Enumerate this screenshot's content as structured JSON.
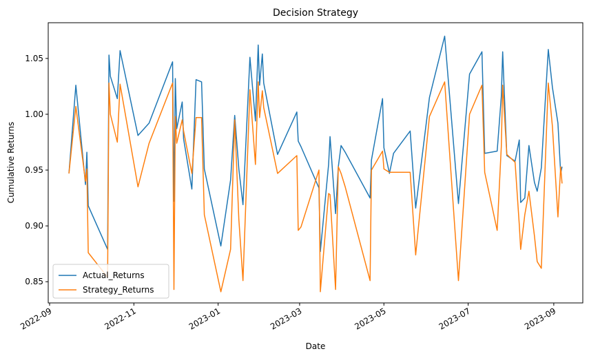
{
  "chart_data": {
    "type": "line",
    "title": "Decision Strategy",
    "xlabel": "Date",
    "ylabel": "Cumulative Returns",
    "xlim": [
      "2022-08-31",
      "2023-09-22"
    ],
    "ylim": [
      0.831,
      1.082
    ],
    "x_ticks": [
      "2022-09",
      "2022-11",
      "2023-01",
      "2023-03",
      "2023-05",
      "2023-07",
      "2023-09"
    ],
    "y_ticks": [
      "0.85",
      "0.90",
      "0.95",
      "1.00",
      "1.05"
    ],
    "legend_position": "lower-left",
    "grid": false,
    "x": [
      "2022-09-15",
      "2022-09-20",
      "2022-09-27",
      "2022-09-28",
      "2022-09-29",
      "2022-10-13",
      "2022-10-14",
      "2022-10-15",
      "2022-10-20",
      "2022-10-22",
      "2022-11-04",
      "2022-11-12",
      "2022-11-29",
      "2022-11-30",
      "2022-12-01",
      "2022-12-02",
      "2022-12-06",
      "2022-12-07",
      "2022-12-13",
      "2022-12-16",
      "2022-12-20",
      "2022-12-22",
      "2023-01-03",
      "2023-01-10",
      "2023-01-13",
      "2023-01-16",
      "2023-01-19",
      "2023-01-24",
      "2023-01-28",
      "2023-01-30",
      "2023-01-31",
      "2023-02-02",
      "2023-02-03",
      "2023-02-13",
      "2023-02-27",
      "2023-02-28",
      "2023-03-02",
      "2023-03-15",
      "2023-03-16",
      "2023-03-22",
      "2023-03-23",
      "2023-03-27",
      "2023-03-29",
      "2023-03-31",
      "2023-04-03",
      "2023-04-21",
      "2023-04-22",
      "2023-04-30",
      "2023-05-01",
      "2023-05-05",
      "2023-05-08",
      "2023-05-20",
      "2023-05-24",
      "2023-06-03",
      "2023-06-14",
      "2023-06-24",
      "2023-07-02",
      "2023-07-11",
      "2023-07-13",
      "2023-07-22",
      "2023-07-25",
      "2023-07-26",
      "2023-07-29",
      "2023-08-04",
      "2023-08-07",
      "2023-08-08",
      "2023-08-11",
      "2023-08-14",
      "2023-08-18",
      "2023-08-20",
      "2023-08-23",
      "2023-08-28",
      "2023-08-31",
      "2023-09-04",
      "2023-09-06",
      "2023-09-07"
    ],
    "series": [
      {
        "name": "Actual_Returns",
        "color": "#1f77b4",
        "values": [
          0.947,
          1.026,
          0.937,
          0.966,
          0.918,
          0.879,
          1.053,
          1.034,
          1.014,
          1.057,
          0.981,
          0.992,
          1.047,
          0.922,
          1.032,
          0.987,
          1.011,
          0.978,
          0.933,
          1.031,
          1.029,
          0.951,
          0.882,
          0.941,
          0.999,
          0.951,
          0.919,
          1.051,
          0.994,
          1.062,
          1.026,
          1.054,
          1.028,
          0.964,
          1.002,
          0.976,
          0.971,
          0.934,
          0.877,
          0.955,
          0.98,
          0.911,
          0.953,
          0.972,
          0.966,
          0.925,
          0.959,
          1.014,
          0.97,
          0.947,
          0.965,
          0.985,
          0.916,
          1.015,
          1.07,
          0.92,
          1.036,
          1.056,
          0.965,
          0.967,
          1.016,
          1.056,
          0.963,
          0.958,
          0.977,
          0.921,
          0.925,
          0.972,
          0.939,
          0.931,
          0.952,
          1.058,
          1.024,
          0.992,
          0.947,
          0.953
        ]
      },
      {
        "name": "Strategy_Returns",
        "color": "#ff7f0e",
        "values": [
          0.947,
          1.007,
          0.94,
          0.951,
          0.876,
          0.854,
          1.028,
          1.0,
          0.975,
          1.027,
          0.935,
          0.974,
          1.028,
          0.843,
          0.998,
          0.974,
          0.995,
          0.985,
          0.947,
          0.997,
          0.997,
          0.91,
          0.841,
          0.879,
          0.995,
          0.906,
          0.851,
          1.022,
          0.955,
          1.029,
          0.997,
          1.021,
          1.006,
          0.947,
          0.963,
          0.896,
          0.899,
          0.95,
          0.841,
          0.929,
          0.928,
          0.843,
          0.953,
          0.947,
          0.935,
          0.851,
          0.95,
          0.967,
          0.951,
          0.948,
          0.948,
          0.948,
          0.874,
          0.998,
          1.029,
          0.851,
          1.0,
          1.026,
          0.948,
          0.896,
          0.971,
          1.026,
          0.964,
          0.957,
          0.901,
          0.879,
          0.91,
          0.931,
          0.891,
          0.868,
          0.862,
          1.028,
          0.989,
          0.908,
          0.953,
          0.938
        ]
      }
    ]
  }
}
